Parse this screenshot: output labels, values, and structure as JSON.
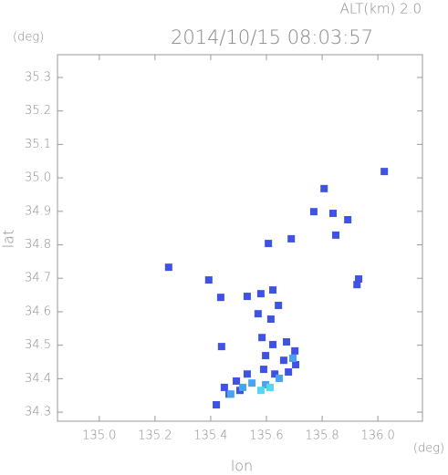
{
  "chart_data": {
    "type": "scatter",
    "title": "2014/10/15 08:03:57",
    "subtitle": "ALT(km) 2.0",
    "y_unit": "(deg)",
    "x_unit": "(deg)",
    "x_label": "lon",
    "y_label": "lat",
    "xlim": [
      134.85,
      136.16
    ],
    "ylim": [
      34.273,
      35.368
    ],
    "xticks": [
      {
        "value": 135.0,
        "label": "135.0"
      },
      135.2,
      135.4,
      135.6,
      135.8,
      {
        "value": 136.0,
        "label": "136.0"
      }
    ],
    "yticks": [
      34.3,
      34.4,
      34.5,
      34.6,
      34.7,
      34.8,
      34.9,
      {
        "value": 35.0,
        "label": "35.0"
      },
      35.1,
      35.2,
      35.3
    ],
    "series": [
      {
        "color": "#3f52e6",
        "x": [
          135.249,
          135.393,
          135.436,
          135.607,
          135.689,
          135.77,
          135.807,
          135.839,
          135.892,
          135.849,
          135.931,
          135.925,
          135.531,
          135.58,
          135.623,
          135.643,
          135.57,
          135.616,
          135.584,
          135.623,
          135.672,
          135.702,
          135.597,
          135.662,
          135.705,
          135.679,
          135.63,
          135.59,
          135.531,
          135.492,
          135.449,
          135.42,
          135.466,
          135.505,
          135.439,
          136.023
        ],
        "values": [
          34.733,
          34.695,
          34.643,
          34.804,
          34.818,
          34.899,
          34.968,
          34.894,
          34.875,
          34.829,
          34.698,
          34.681,
          34.646,
          34.654,
          34.665,
          34.619,
          34.594,
          34.578,
          34.523,
          34.502,
          34.51,
          34.483,
          34.469,
          34.455,
          34.442,
          34.42,
          34.414,
          34.428,
          34.414,
          34.393,
          34.374,
          34.322,
          34.354,
          34.365,
          34.496,
          35.019
        ]
      },
      {
        "color": "#4aa3f0",
        "x": [
          135.515,
          135.548,
          135.597,
          135.646,
          135.472,
          135.695
        ],
        "values": [
          34.374,
          34.387,
          34.382,
          34.401,
          34.354,
          34.461
        ]
      },
      {
        "color": "#52d8f2",
        "x": [
          135.613,
          135.58
        ],
        "values": [
          34.374,
          34.365
        ]
      }
    ]
  }
}
